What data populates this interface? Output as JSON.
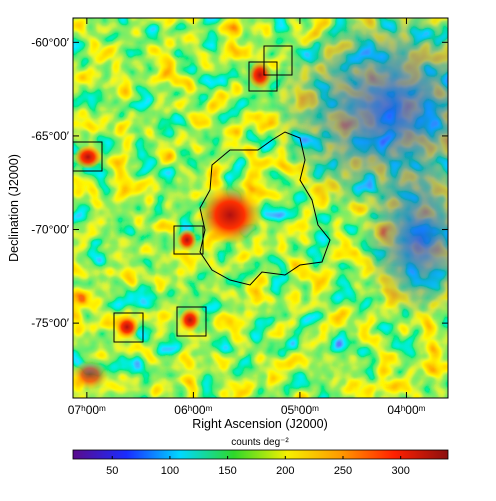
{
  "chart_data": {
    "type": "heatmap",
    "x_label": "Right Ascension (J2000)",
    "y_label": "Declination (J2000)",
    "xlim": [
      7.13,
      3.61
    ],
    "xticks": [
      {
        "value": 7,
        "label": "07ʰ00ᵐ"
      },
      {
        "value": 6,
        "label": "06ʰ00ᵐ"
      },
      {
        "value": 5,
        "label": "05ʰ00ᵐ"
      },
      {
        "value": 4,
        "label": "04ʰ00ᵐ"
      }
    ],
    "ylim": [
      -58.7,
      -79.0
    ],
    "yticks": [
      {
        "value": -60,
        "label": "-60°00′"
      },
      {
        "value": -65,
        "label": "-65°00′"
      },
      {
        "value": -70,
        "label": "-70°00′"
      },
      {
        "value": -75,
        "label": "-75°00′"
      }
    ],
    "colorbar_label": "counts deg⁻²",
    "clim": [
      16,
      341
    ],
    "cticks": [
      50,
      100,
      150,
      200,
      250,
      300
    ],
    "colorscale": [
      "#5a0a8c",
      "#1a2cff",
      "#00d8ff",
      "#2ed82a",
      "#f5f000",
      "#ff9a00",
      "#ff2000",
      "#8b0f0f"
    ]
  }
}
